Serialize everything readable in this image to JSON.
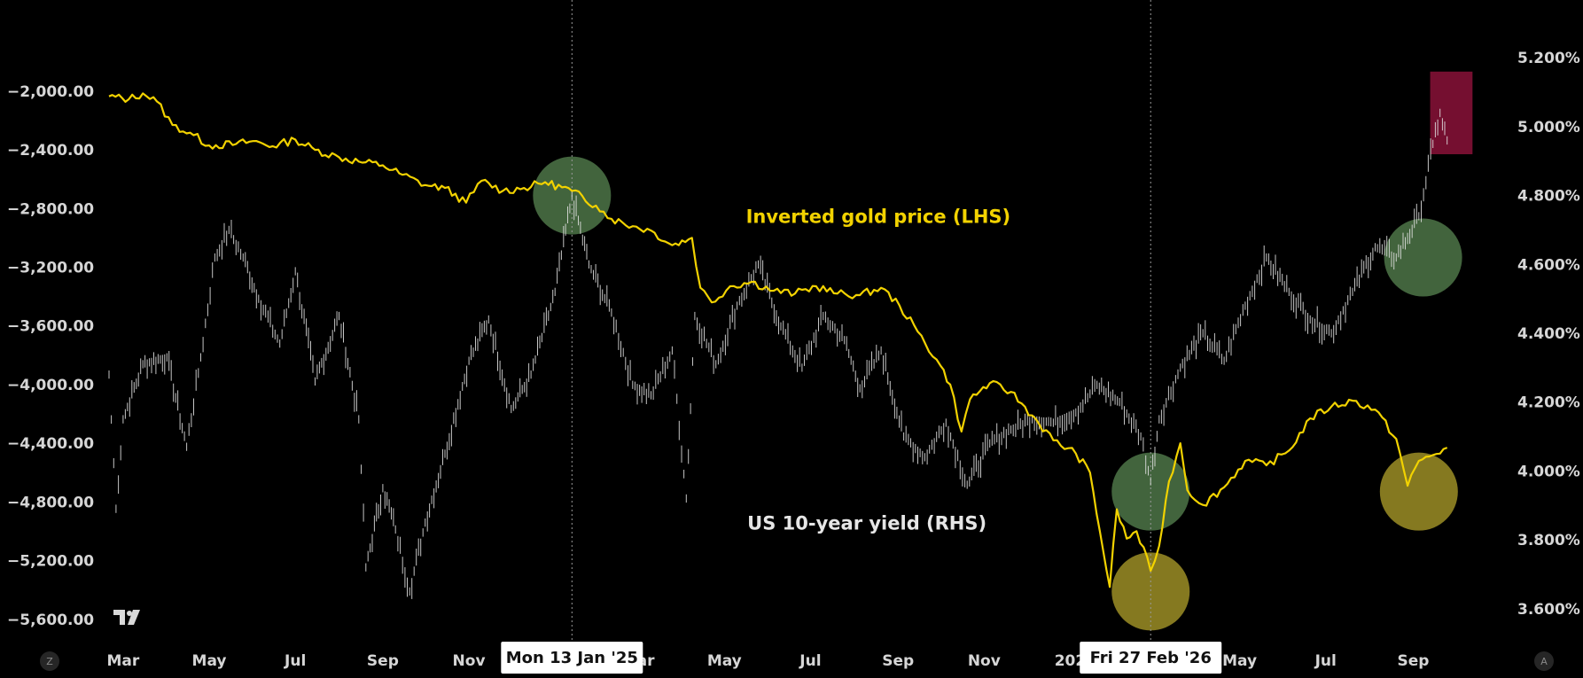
{
  "chart_data": {
    "type": "line",
    "left_axis": {
      "ticks": [
        "−2,000.00",
        "−2,400.00",
        "−2,800.00",
        "−3,200.00",
        "−3,600.00",
        "−4,000.00",
        "−4,400.00",
        "−4,800.00",
        "−5,200.00",
        "−5,600.00"
      ],
      "tick_values": [
        -2000,
        -2400,
        -2800,
        -3200,
        -3600,
        -4000,
        -4400,
        -4800,
        -5200,
        -5600
      ],
      "range": [
        -5680,
        -1620
      ]
    },
    "right_axis": {
      "ticks": [
        "5.200%",
        "5.000%",
        "4.800%",
        "4.600%",
        "4.400%",
        "4.200%",
        "4.000%",
        "3.800%",
        "3.600%"
      ],
      "tick_values": [
        5.2,
        5.0,
        4.8,
        4.6,
        4.4,
        4.2,
        4.0,
        3.8,
        3.6
      ],
      "range": [
        3.535,
        5.265
      ]
    },
    "x_axis": {
      "range": [
        "2024-02-15",
        "2026-10-31"
      ],
      "ticks": [
        {
          "label": "Mar",
          "date": "2024-03-01"
        },
        {
          "label": "May",
          "date": "2024-05-01"
        },
        {
          "label": "Jul",
          "date": "2024-07-01"
        },
        {
          "label": "Sep",
          "date": "2024-09-01"
        },
        {
          "label": "Nov",
          "date": "2024-11-01"
        },
        {
          "label": "Mar",
          "date": "2025-03-01"
        },
        {
          "label": "May",
          "date": "2025-05-01"
        },
        {
          "label": "Jul",
          "date": "2025-07-01"
        },
        {
          "label": "Sep",
          "date": "2025-09-01"
        },
        {
          "label": "Nov",
          "date": "2025-11-01"
        },
        {
          "label": "202",
          "date": "2026-01-01"
        },
        {
          "label": "May",
          "date": "2026-05-01"
        },
        {
          "label": "Jul",
          "date": "2026-07-01"
        },
        {
          "label": "Sep",
          "date": "2026-09-01"
        }
      ]
    },
    "cursors": [
      {
        "date": "2025-01-13",
        "label": "Mon 13 Jan '25"
      },
      {
        "date": "2026-02-27",
        "label": "Fri 27 Feb '26"
      }
    ],
    "series": [
      {
        "name": "Inverted gold price (LHS)",
        "axis": "left",
        "color": "#f2d200",
        "points": [
          [
            "2024-02-20",
            -2035
          ],
          [
            "2024-03-05",
            -2055
          ],
          [
            "2024-03-15",
            -2015
          ],
          [
            "2024-03-25",
            -2070
          ],
          [
            "2024-04-05",
            -2230
          ],
          [
            "2024-04-20",
            -2300
          ],
          [
            "2024-05-01",
            -2370
          ],
          [
            "2024-05-20",
            -2360
          ],
          [
            "2024-06-01",
            -2340
          ],
          [
            "2024-06-15",
            -2375
          ],
          [
            "2024-07-01",
            -2330
          ],
          [
            "2024-07-15",
            -2400
          ],
          [
            "2024-08-01",
            -2450
          ],
          [
            "2024-08-15",
            -2480
          ],
          [
            "2024-09-01",
            -2505
          ],
          [
            "2024-09-15",
            -2570
          ],
          [
            "2024-10-01",
            -2640
          ],
          [
            "2024-10-15",
            -2660
          ],
          [
            "2024-10-30",
            -2760
          ],
          [
            "2024-11-10",
            -2610
          ],
          [
            "2024-11-25",
            -2680
          ],
          [
            "2024-12-10",
            -2660
          ],
          [
            "2024-12-25",
            -2620
          ],
          [
            "2025-01-13",
            -2680
          ],
          [
            "2025-01-30",
            -2780
          ],
          [
            "2025-02-10",
            -2870
          ],
          [
            "2025-02-25",
            -2920
          ],
          [
            "2025-03-10",
            -2950
          ],
          [
            "2025-03-25",
            -3050
          ],
          [
            "2025-04-08",
            -3000
          ],
          [
            "2025-04-14",
            -3340
          ],
          [
            "2025-04-22",
            -3440
          ],
          [
            "2025-05-05",
            -3330
          ],
          [
            "2025-05-20",
            -3300
          ],
          [
            "2025-06-05",
            -3360
          ],
          [
            "2025-06-20",
            -3380
          ],
          [
            "2025-07-05",
            -3330
          ],
          [
            "2025-07-20",
            -3380
          ],
          [
            "2025-08-05",
            -3390
          ],
          [
            "2025-08-20",
            -3340
          ],
          [
            "2025-09-02",
            -3460
          ],
          [
            "2025-09-15",
            -3640
          ],
          [
            "2025-10-01",
            -3870
          ],
          [
            "2025-10-08",
            -4000
          ],
          [
            "2025-10-16",
            -4320
          ],
          [
            "2025-10-22",
            -4100
          ],
          [
            "2025-11-05",
            -3990
          ],
          [
            "2025-11-20",
            -4050
          ],
          [
            "2025-12-05",
            -4210
          ],
          [
            "2025-12-20",
            -4380
          ],
          [
            "2026-01-05",
            -4470
          ],
          [
            "2026-01-15",
            -4600
          ],
          [
            "2026-01-22",
            -5000
          ],
          [
            "2026-01-29",
            -5380
          ],
          [
            "2026-02-03",
            -4850
          ],
          [
            "2026-02-10",
            -5050
          ],
          [
            "2026-02-17",
            -5000
          ],
          [
            "2026-02-27",
            -5270
          ],
          [
            "2026-03-05",
            -5100
          ],
          [
            "2026-03-12",
            -4660
          ],
          [
            "2026-03-20",
            -4400
          ],
          [
            "2026-03-25",
            -4720
          ],
          [
            "2026-04-05",
            -4820
          ],
          [
            "2026-04-20",
            -4700
          ],
          [
            "2026-05-05",
            -4520
          ],
          [
            "2026-05-20",
            -4550
          ],
          [
            "2026-06-05",
            -4450
          ],
          [
            "2026-06-20",
            -4230
          ],
          [
            "2026-07-05",
            -4150
          ],
          [
            "2026-07-20",
            -4110
          ],
          [
            "2026-08-05",
            -4170
          ],
          [
            "2026-08-20",
            -4370
          ],
          [
            "2026-08-28",
            -4690
          ],
          [
            "2026-09-05",
            -4520
          ],
          [
            "2026-09-15",
            -4480
          ],
          [
            "2026-09-25",
            -4430
          ]
        ]
      },
      {
        "name": "US 10-year yield (RHS)",
        "axis": "right",
        "color": "#e0e0e0",
        "points": [
          [
            "2024-02-20",
            4.28
          ],
          [
            "2024-02-25",
            3.89
          ],
          [
            "2024-03-01",
            4.15
          ],
          [
            "2024-03-15",
            4.31
          ],
          [
            "2024-04-01",
            4.33
          ],
          [
            "2024-04-15",
            4.07
          ],
          [
            "2024-04-25",
            4.33
          ],
          [
            "2024-05-05",
            4.62
          ],
          [
            "2024-05-15",
            4.7
          ],
          [
            "2024-05-25",
            4.62
          ],
          [
            "2024-06-05",
            4.5
          ],
          [
            "2024-06-20",
            4.37
          ],
          [
            "2024-07-01",
            4.58
          ],
          [
            "2024-07-15",
            4.26
          ],
          [
            "2024-08-01",
            4.45
          ],
          [
            "2024-08-15",
            4.15
          ],
          [
            "2024-08-20",
            3.72
          ],
          [
            "2024-09-01",
            3.95
          ],
          [
            "2024-09-10",
            3.83
          ],
          [
            "2024-09-20",
            3.65
          ],
          [
            "2024-10-01",
            3.85
          ],
          [
            "2024-10-15",
            4.05
          ],
          [
            "2024-11-01",
            4.32
          ],
          [
            "2024-11-15",
            4.44
          ],
          [
            "2024-12-01",
            4.18
          ],
          [
            "2024-12-15",
            4.28
          ],
          [
            "2025-01-01",
            4.52
          ],
          [
            "2025-01-13",
            4.8
          ],
          [
            "2025-01-25",
            4.6
          ],
          [
            "2025-02-10",
            4.46
          ],
          [
            "2025-02-25",
            4.25
          ],
          [
            "2025-03-10",
            4.22
          ],
          [
            "2025-03-25",
            4.35
          ],
          [
            "2025-04-04",
            3.92
          ],
          [
            "2025-04-10",
            4.45
          ],
          [
            "2025-04-25",
            4.31
          ],
          [
            "2025-05-10",
            4.48
          ],
          [
            "2025-05-25",
            4.6
          ],
          [
            "2025-06-10",
            4.42
          ],
          [
            "2025-06-25",
            4.3
          ],
          [
            "2025-07-10",
            4.45
          ],
          [
            "2025-07-25",
            4.38
          ],
          [
            "2025-08-05",
            4.24
          ],
          [
            "2025-08-20",
            4.35
          ],
          [
            "2025-09-05",
            4.1
          ],
          [
            "2025-09-20",
            4.04
          ],
          [
            "2025-10-05",
            4.14
          ],
          [
            "2025-10-20",
            3.96
          ],
          [
            "2025-11-05",
            4.08
          ],
          [
            "2025-11-20",
            4.12
          ],
          [
            "2025-12-05",
            4.15
          ],
          [
            "2025-12-20",
            4.14
          ],
          [
            "2026-01-05",
            4.17
          ],
          [
            "2026-01-20",
            4.25
          ],
          [
            "2026-02-05",
            4.2
          ],
          [
            "2026-02-20",
            4.1
          ],
          [
            "2026-02-27",
            3.97
          ],
          [
            "2026-03-05",
            4.15
          ],
          [
            "2026-03-20",
            4.3
          ],
          [
            "2026-04-05",
            4.4
          ],
          [
            "2026-04-20",
            4.32
          ],
          [
            "2026-05-05",
            4.48
          ],
          [
            "2026-05-20",
            4.62
          ],
          [
            "2026-06-05",
            4.52
          ],
          [
            "2026-06-20",
            4.44
          ],
          [
            "2026-07-05",
            4.4
          ],
          [
            "2026-07-20",
            4.52
          ],
          [
            "2026-08-05",
            4.65
          ],
          [
            "2026-08-20",
            4.62
          ],
          [
            "2026-09-05",
            4.74
          ],
          [
            "2026-09-15",
            4.95
          ],
          [
            "2026-09-20",
            5.04
          ],
          [
            "2026-09-25",
            4.96
          ]
        ]
      }
    ],
    "annotations": [
      {
        "text": "Inverted gold price (LHS)",
        "date": "2025-08-18",
        "value": 4.72,
        "axis": "right",
        "color": "#f2d200"
      },
      {
        "text": "US 10-year yield (RHS)",
        "date": "2025-08-10",
        "value": 3.83,
        "axis": "right",
        "color": "#e6e6e6"
      }
    ],
    "highlights": [
      {
        "shape": "circle",
        "date": "2025-01-13",
        "value": 4.8,
        "axis": "right",
        "color": "#5c8a55"
      },
      {
        "shape": "circle",
        "date": "2026-02-27",
        "value": 3.94,
        "axis": "right",
        "color": "#5c8a55"
      },
      {
        "shape": "circle",
        "date": "2026-02-27",
        "value": 3.65,
        "axis": "right",
        "color": "#b8a82c"
      },
      {
        "shape": "circle",
        "date": "2026-09-08",
        "value": 4.62,
        "axis": "right",
        "color": "#5c8a55"
      },
      {
        "shape": "circle",
        "date": "2026-09-05",
        "value": 3.94,
        "axis": "right",
        "color": "#b8a82c"
      },
      {
        "shape": "rect",
        "date_range": [
          "2026-09-13",
          "2026-10-13"
        ],
        "value_range": [
          4.92,
          5.16
        ],
        "axis": "right",
        "color": "#8a1238"
      }
    ],
    "grid": false
  },
  "buttons": {
    "left": "Z",
    "right": "A"
  },
  "logo": "tradingview-logo"
}
